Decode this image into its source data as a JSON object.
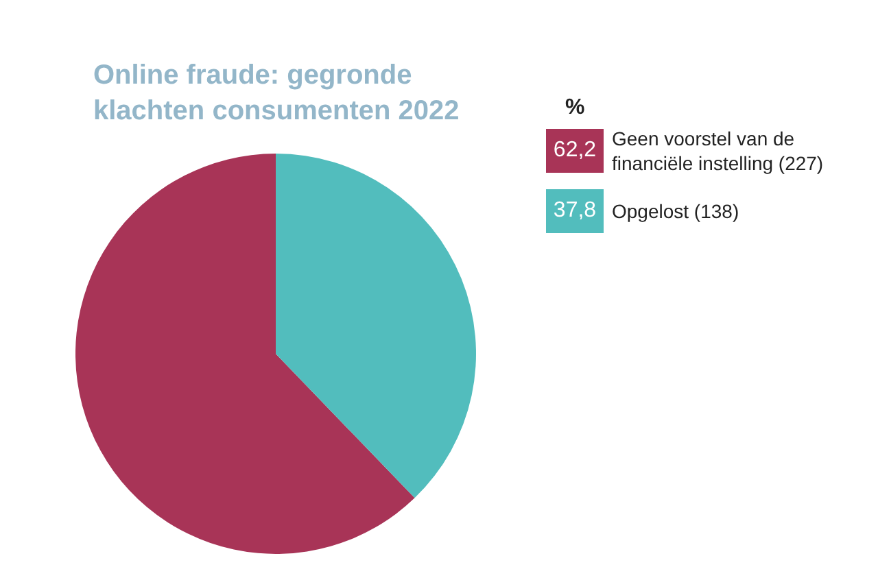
{
  "chart_data": {
    "type": "pie",
    "title": "Online fraude: gegronde klachten consumenten 2022",
    "legend_title": "%",
    "categories": [
      "Geen voorstel van de financiële instelling (227)",
      "Opgelost (138)"
    ],
    "values": [
      62.2,
      37.8
    ],
    "colors": [
      "#a83457",
      "#52bdbd"
    ],
    "value_labels": [
      "62,2",
      "37,8"
    ],
    "legend": "top right"
  }
}
